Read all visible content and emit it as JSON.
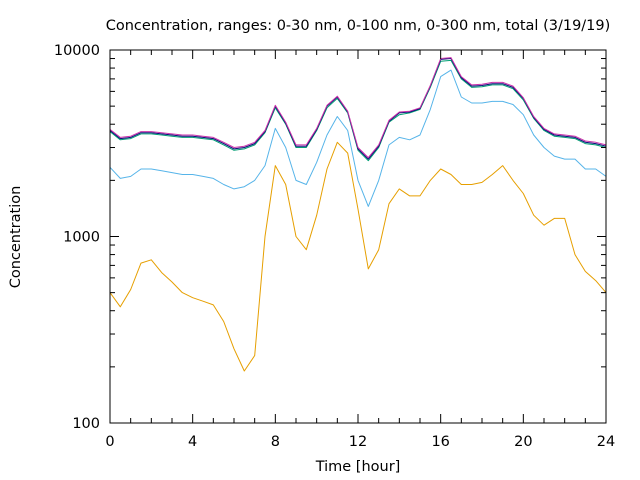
{
  "chart_data": {
    "type": "line",
    "title": "Concentration, ranges: 0-30 nm, 0-100 nm, 0-300 nm, total (3/19/19)",
    "xlabel": "Time [hour]",
    "ylabel": "Concentration",
    "xlim": [
      0,
      24
    ],
    "ylim": [
      100,
      10000
    ],
    "yscale": "log",
    "grid": false,
    "legend": "none",
    "x_ticks": [
      {
        "value": 0,
        "label": "0"
      },
      {
        "value": 4,
        "label": "4"
      },
      {
        "value": 8,
        "label": "8"
      },
      {
        "value": 12,
        "label": "12"
      },
      {
        "value": 16,
        "label": "16"
      },
      {
        "value": 20,
        "label": "20"
      },
      {
        "value": 24,
        "label": "24"
      }
    ],
    "y_ticks": [
      {
        "value": 100,
        "label": "100"
      },
      {
        "value": 1000,
        "label": "1000"
      },
      {
        "value": 10000,
        "label": "10000"
      }
    ],
    "series": [
      {
        "color": "#e69f00",
        "x": [
          0,
          0.5,
          1,
          1.5,
          2,
          2.5,
          3,
          3.5,
          4,
          4.5,
          5,
          5.5,
          6,
          6.5,
          7,
          7.5,
          8,
          8.5,
          9,
          9.5,
          10,
          10.5,
          11,
          11.5,
          12,
          12.5,
          13,
          13.5,
          14,
          14.5,
          15,
          15.5,
          16,
          16.5,
          17,
          17.5,
          18,
          18.5,
          19,
          19.5,
          20,
          20.5,
          21,
          21.5,
          22,
          22.5,
          23,
          23.5,
          24
        ],
        "y": [
          500,
          420,
          520,
          720,
          750,
          640,
          570,
          500,
          470,
          450,
          430,
          350,
          250,
          190,
          230,
          1000,
          2400,
          1900,
          1000,
          850,
          1300,
          2300,
          3200,
          2800,
          1400,
          670,
          850,
          1500,
          1800,
          1650,
          1650,
          2000,
          2300,
          2150,
          1900,
          1900,
          1950,
          2150,
          2400,
          2000,
          1700,
          1300,
          1150,
          1250,
          1250,
          800,
          650,
          580,
          500
        ]
      },
      {
        "color": "#56b4e9",
        "x": [
          0,
          0.5,
          1,
          1.5,
          2,
          2.5,
          3,
          3.5,
          4,
          4.5,
          5,
          5.5,
          6,
          6.5,
          7,
          7.5,
          8,
          8.5,
          9,
          9.5,
          10,
          10.5,
          11,
          11.5,
          12,
          12.5,
          13,
          13.5,
          14,
          14.5,
          15,
          15.5,
          16,
          16.5,
          17,
          17.5,
          18,
          18.5,
          19,
          19.5,
          20,
          20.5,
          21,
          21.5,
          22,
          22.5,
          23,
          23.5,
          24
        ],
        "y": [
          2350,
          2050,
          2100,
          2300,
          2300,
          2250,
          2200,
          2150,
          2150,
          2100,
          2050,
          1900,
          1800,
          1850,
          2000,
          2400,
          3800,
          3000,
          2000,
          1900,
          2500,
          3500,
          4400,
          3700,
          2000,
          1450,
          2000,
          3100,
          3400,
          3300,
          3500,
          4800,
          7200,
          7800,
          5600,
          5200,
          5200,
          5300,
          5300,
          5100,
          4500,
          3500,
          3000,
          2700,
          2600,
          2600,
          2300,
          2300,
          2100
        ]
      },
      {
        "color": "#009e73",
        "x": [
          0,
          0.5,
          1,
          1.5,
          2,
          2.5,
          3,
          3.5,
          4,
          4.5,
          5,
          5.5,
          6,
          6.5,
          7,
          7.5,
          8,
          8.5,
          9,
          9.5,
          10,
          10.5,
          11,
          11.5,
          12,
          12.5,
          13,
          13.5,
          14,
          14.5,
          15,
          15.5,
          16,
          16.5,
          17,
          17.5,
          18,
          18.5,
          19,
          19.5,
          20,
          20.5,
          21,
          21.5,
          22,
          22.5,
          23,
          23.5,
          24
        ],
        "y": [
          3650,
          3300,
          3350,
          3550,
          3550,
          3500,
          3450,
          3400,
          3400,
          3350,
          3300,
          3100,
          2900,
          2950,
          3100,
          3600,
          4900,
          4000,
          3000,
          3000,
          3700,
          4900,
          5500,
          4600,
          2900,
          2550,
          3000,
          4100,
          4500,
          4600,
          4800,
          6300,
          8700,
          8800,
          7000,
          6300,
          6350,
          6500,
          6500,
          6200,
          5400,
          4300,
          3700,
          3450,
          3400,
          3350,
          3150,
          3100,
          3000
        ]
      },
      {
        "color": "#0b0b7a",
        "x": [
          0,
          0.5,
          1,
          1.5,
          2,
          2.5,
          3,
          3.5,
          4,
          4.5,
          5,
          5.5,
          6,
          6.5,
          7,
          7.5,
          8,
          8.5,
          9,
          9.5,
          10,
          10.5,
          11,
          11.5,
          12,
          12.5,
          13,
          13.5,
          14,
          14.5,
          15,
          15.5,
          16,
          16.5,
          17,
          17.5,
          18,
          18.5,
          19,
          19.5,
          20,
          20.5,
          21,
          21.5,
          22,
          22.5,
          23,
          23.5,
          24
        ],
        "y": [
          3700,
          3350,
          3400,
          3600,
          3600,
          3550,
          3500,
          3450,
          3450,
          3400,
          3350,
          3150,
          2950,
          3000,
          3150,
          3650,
          5000,
          4050,
          3050,
          3050,
          3750,
          5000,
          5600,
          4650,
          2950,
          2600,
          3050,
          4150,
          4600,
          4650,
          4850,
          6400,
          8900,
          9000,
          7100,
          6400,
          6450,
          6600,
          6600,
          6300,
          5500,
          4350,
          3750,
          3500,
          3450,
          3400,
          3200,
          3150,
          3050
        ]
      },
      {
        "color": "#cc33aa",
        "x": [
          0,
          0.5,
          1,
          1.5,
          2,
          2.5,
          3,
          3.5,
          4,
          4.5,
          5,
          5.5,
          6,
          6.5,
          7,
          7.5,
          8,
          8.5,
          9,
          9.5,
          10,
          10.5,
          11,
          11.5,
          12,
          12.5,
          13,
          13.5,
          14,
          14.5,
          15,
          15.5,
          16,
          16.5,
          17,
          17.5,
          18,
          18.5,
          19,
          19.5,
          20,
          20.5,
          21,
          21.5,
          22,
          22.5,
          23,
          23.5,
          24
        ],
        "y": [
          3750,
          3400,
          3450,
          3650,
          3650,
          3600,
          3550,
          3500,
          3500,
          3450,
          3400,
          3200,
          3000,
          3050,
          3200,
          3700,
          5050,
          4100,
          3100,
          3100,
          3800,
          5050,
          5650,
          4700,
          3000,
          2650,
          3100,
          4200,
          4650,
          4700,
          4900,
          6450,
          9000,
          9100,
          7200,
          6500,
          6550,
          6700,
          6700,
          6400,
          5550,
          4400,
          3800,
          3550,
          3500,
          3450,
          3250,
          3200,
          3100
        ]
      }
    ]
  }
}
